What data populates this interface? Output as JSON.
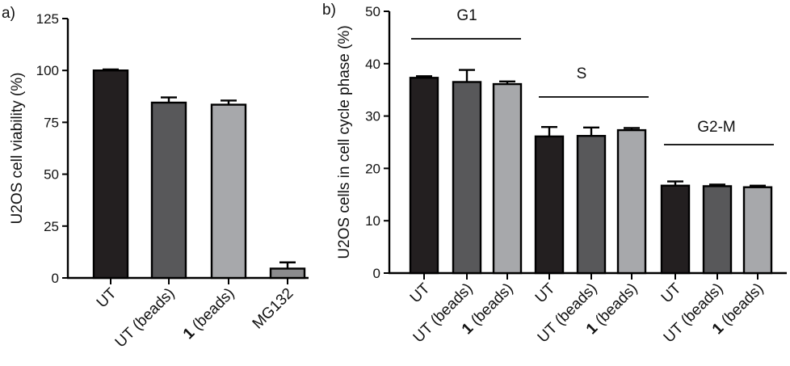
{
  "chart_data": [
    {
      "panel": "a)",
      "type": "bar",
      "ylabel": "U2OS cell viability (%)",
      "ylim": [
        0,
        125
      ],
      "yticks": [
        0,
        25,
        50,
        75,
        100,
        125
      ],
      "categories": [
        {
          "prefix": "",
          "bold": "",
          "suffix": "UT"
        },
        {
          "prefix": "UT (beads)",
          "bold": "",
          "suffix": ""
        },
        {
          "prefix": "",
          "bold": "1",
          "suffix": " (beads)"
        },
        {
          "prefix": "MG132",
          "bold": "",
          "suffix": ""
        }
      ],
      "values": [
        100,
        84.5,
        83.5,
        4.5
      ],
      "errors": [
        0.5,
        2.5,
        2.0,
        3.0
      ],
      "colors": [
        "#231f20",
        "#58585a",
        "#a7a8ab",
        "#8b8b8d"
      ]
    },
    {
      "panel": "b)",
      "type": "bar",
      "ylabel": "U2OS cells in cell cycle phase (%)",
      "ylim": [
        0,
        50
      ],
      "yticks": [
        0,
        10,
        20,
        30,
        40,
        50
      ],
      "groups": [
        {
          "label": "G1",
          "values": [
            37.3,
            36.5,
            36.1
          ],
          "errors": [
            0.3,
            2.3,
            0.5
          ]
        },
        {
          "label": "S",
          "values": [
            26.1,
            26.2,
            27.3
          ],
          "errors": [
            1.8,
            1.6,
            0.4
          ]
        },
        {
          "label": "G2-M",
          "values": [
            16.7,
            16.6,
            16.4
          ],
          "errors": [
            0.8,
            0.3,
            0.3
          ]
        }
      ],
      "categories": [
        {
          "prefix": "UT",
          "bold": "",
          "suffix": ""
        },
        {
          "prefix": "UT (beads)",
          "bold": "",
          "suffix": ""
        },
        {
          "prefix": "",
          "bold": "1",
          "suffix": " (beads)"
        }
      ],
      "colors": [
        "#231f20",
        "#58585a",
        "#a7a8ab"
      ]
    }
  ]
}
